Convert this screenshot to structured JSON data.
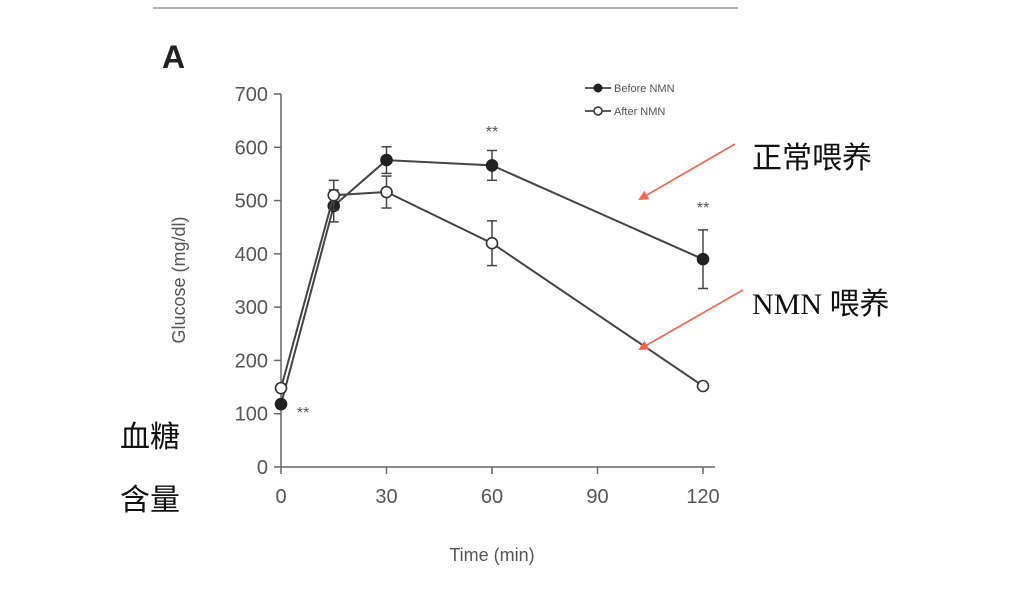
{
  "panel_label": "A",
  "side_label_line1": "血糖",
  "side_label_line2": "含量",
  "annotations": {
    "normal": "正常喂养",
    "nmn": "NMN 喂养",
    "arrow_color": "#f2664f"
  },
  "chart_data": {
    "type": "line",
    "xlabel": "Time (min)",
    "ylabel": "Glucose (mg/dl)",
    "xlim": [
      0,
      120
    ],
    "ylim": [
      0,
      700
    ],
    "xticks": [
      0,
      30,
      60,
      90,
      120
    ],
    "yticks": [
      0,
      100,
      200,
      300,
      400,
      500,
      600,
      700
    ],
    "grid": false,
    "legend_position": "top-right",
    "line_color": "#444444",
    "series": [
      {
        "name": "Before NMN",
        "marker": "filled",
        "x": [
          0,
          15,
          30,
          60,
          120
        ],
        "y": [
          118,
          490,
          576,
          566,
          390
        ],
        "err": [
          0,
          30,
          25,
          28,
          55
        ]
      },
      {
        "name": "After NMN",
        "marker": "open",
        "x": [
          0,
          15,
          30,
          60,
          120
        ],
        "y": [
          148,
          510,
          516,
          420,
          152
        ],
        "err": [
          0,
          28,
          30,
          42,
          0
        ]
      }
    ],
    "significance": [
      {
        "x": 0,
        "label": "**"
      },
      {
        "x": 60,
        "label": "**"
      },
      {
        "x": 120,
        "label": "**"
      }
    ]
  }
}
